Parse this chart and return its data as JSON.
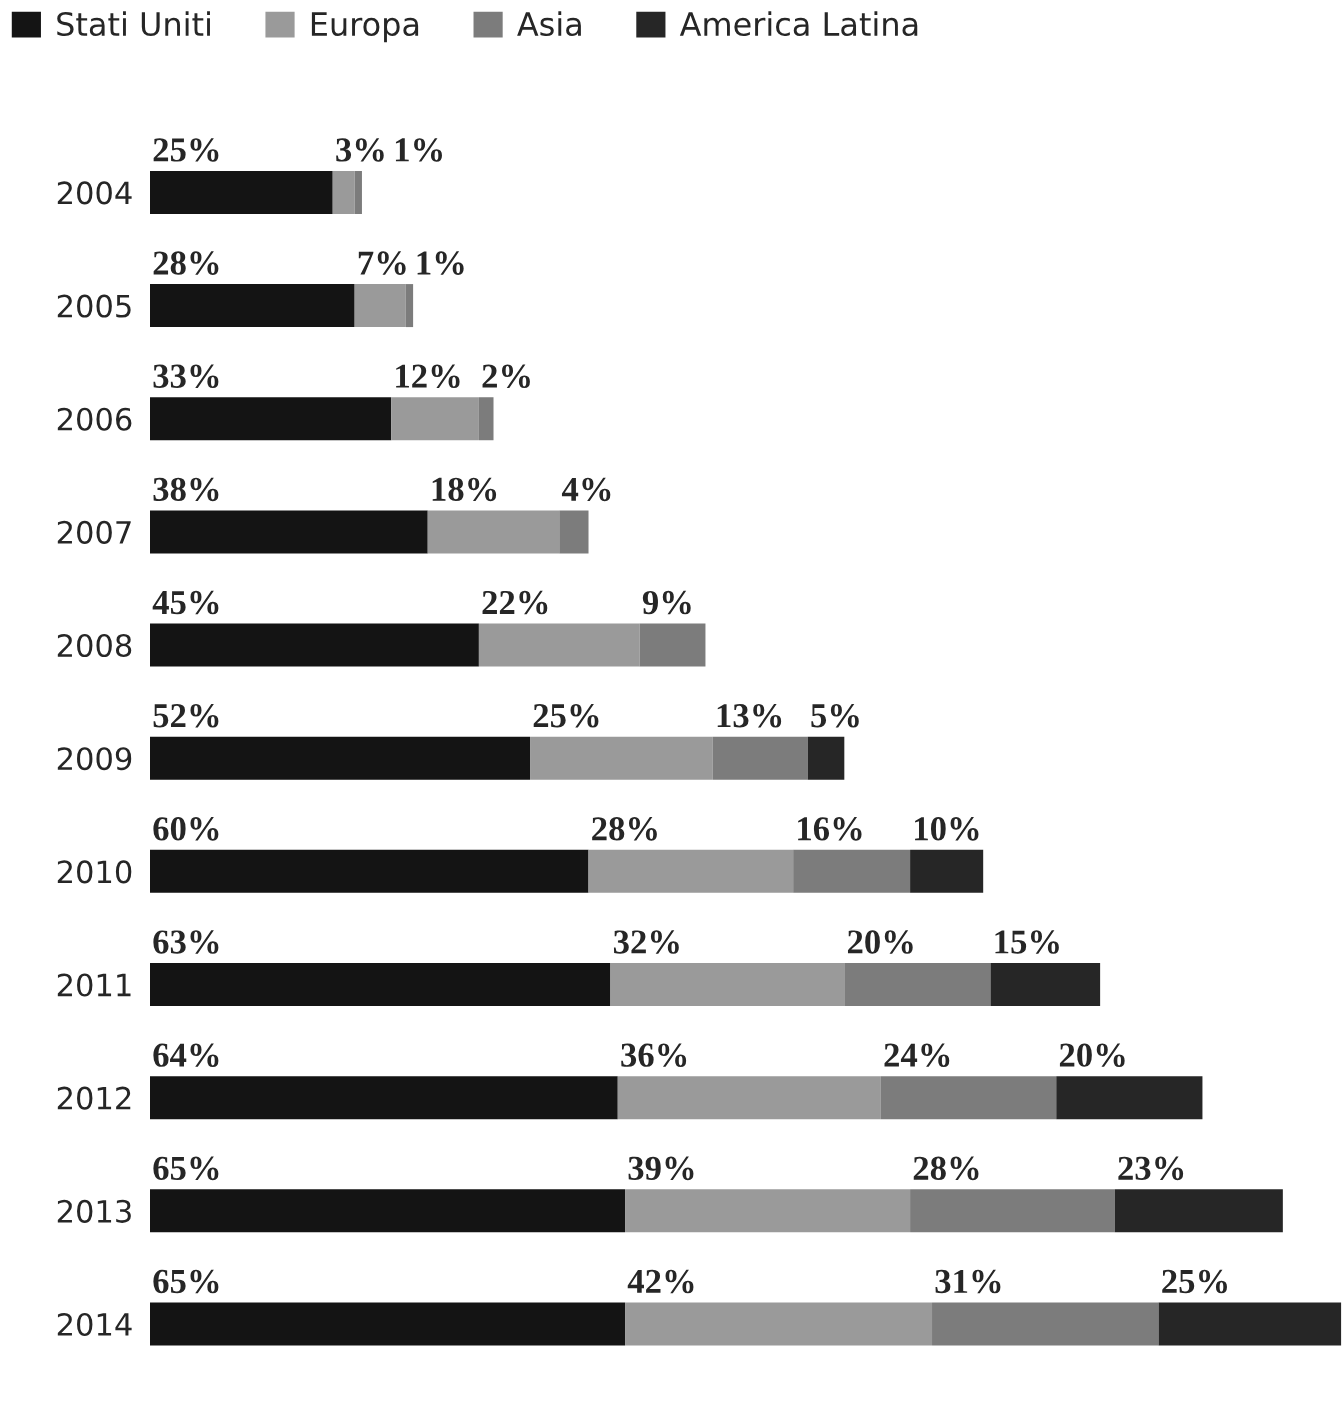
{
  "chart_data": {
    "type": "bar",
    "orientation": "horizontal",
    "stacked": true,
    "categories": [
      "2004",
      "2005",
      "2006",
      "2007",
      "2008",
      "2009",
      "2010",
      "2011",
      "2012",
      "2013",
      "2014"
    ],
    "series": [
      {
        "name": "Stati Uniti",
        "color": "#141414",
        "values": [
          25,
          28,
          33,
          38,
          45,
          52,
          60,
          63,
          64,
          65,
          65
        ],
        "value_labels": [
          "25%",
          "28%",
          "33%",
          "38%",
          "45%",
          "52%",
          "60%",
          "63%",
          "64%",
          "65%",
          "65%"
        ]
      },
      {
        "name": "Europa",
        "color": "#9a9a9a",
        "values": [
          3,
          7,
          12,
          18,
          22,
          25,
          28,
          32,
          36,
          39,
          42
        ],
        "value_labels": [
          "3%",
          "7%",
          "12%",
          "18%",
          "22%",
          "25%",
          "28%",
          "32%",
          "36%",
          "39%",
          "42%"
        ]
      },
      {
        "name": "Asia",
        "color": "#7c7c7c",
        "values": [
          1,
          1,
          2,
          4,
          9,
          13,
          16,
          20,
          24,
          28,
          31
        ],
        "value_labels": [
          "1%",
          "1%",
          "2%",
          "4%",
          "9%",
          "13%",
          "16%",
          "20%",
          "24%",
          "28%",
          "31%"
        ]
      },
      {
        "name": "America Latina",
        "color": "#262626",
        "values": [
          null,
          null,
          null,
          null,
          null,
          5,
          10,
          15,
          20,
          23,
          25
        ],
        "value_labels": [
          null,
          null,
          null,
          null,
          null,
          "5%",
          "10%",
          "15%",
          "20%",
          "23%",
          "25%"
        ]
      }
    ],
    "legend": "top left",
    "grid": false
  }
}
